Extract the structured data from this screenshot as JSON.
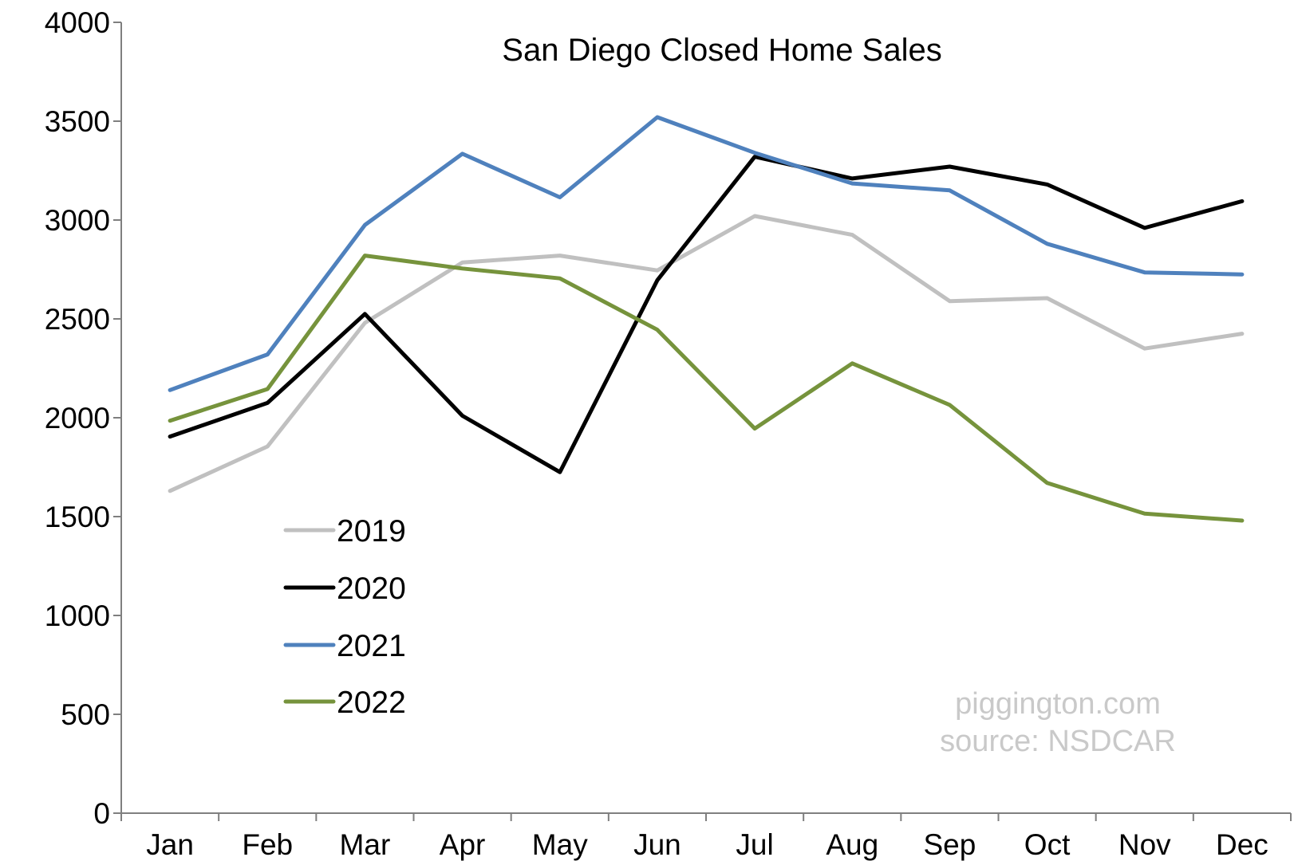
{
  "chart_data": {
    "type": "line",
    "title": "San Diego Closed Home Sales",
    "xlabel": "",
    "ylabel": "",
    "categories": [
      "Jan",
      "Feb",
      "Mar",
      "Apr",
      "May",
      "Jun",
      "Jul",
      "Aug",
      "Sep",
      "Oct",
      "Nov",
      "Dec"
    ],
    "ylim": [
      0,
      4000
    ],
    "yticks": [
      0,
      500,
      1000,
      1500,
      2000,
      2500,
      3000,
      3500,
      4000
    ],
    "grid": false,
    "legend_position": "lower-left",
    "series": [
      {
        "name": "2019",
        "color": "#c0c0c0",
        "values": [
          1630,
          1855,
          2480,
          2785,
          2820,
          2745,
          3020,
          2925,
          2590,
          2605,
          2350,
          2425
        ]
      },
      {
        "name": "2020",
        "color": "#000000",
        "values": [
          1905,
          2075,
          2525,
          2010,
          1725,
          2695,
          3320,
          3210,
          3270,
          3180,
          2960,
          3095
        ]
      },
      {
        "name": "2021",
        "color": "#4f81bd",
        "values": [
          2140,
          2320,
          2975,
          3335,
          3115,
          3520,
          3340,
          3185,
          3150,
          2880,
          2735,
          2725
        ]
      },
      {
        "name": "2022",
        "color": "#76933c",
        "values": [
          1985,
          2145,
          2820,
          2755,
          2705,
          2445,
          1945,
          2275,
          2065,
          1670,
          1515,
          1480
        ]
      }
    ],
    "annotations": [
      "piggington.com",
      "source: NSDCAR"
    ]
  }
}
